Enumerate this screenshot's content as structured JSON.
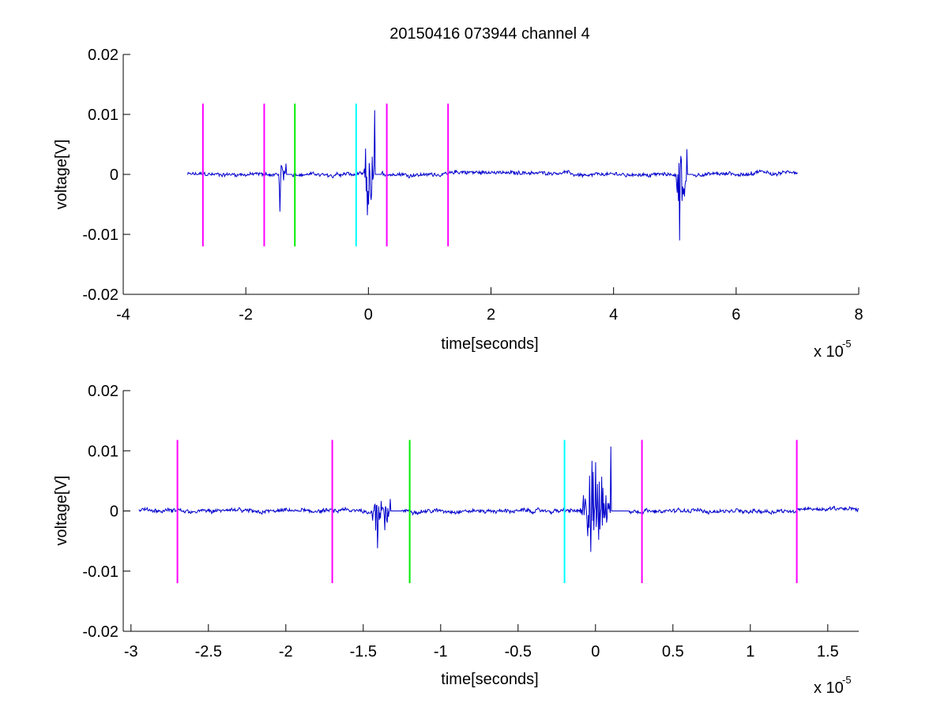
{
  "figure": {
    "title": "20150416 073944 channel 4"
  },
  "colors": {
    "signal": "#0000cc",
    "marker_magenta": "#ff00ff",
    "marker_green": "#00ee00",
    "marker_cyan": "#00ffff",
    "axes": "#000000",
    "background": "#ffffff"
  },
  "chart_data": [
    {
      "type": "line",
      "xlabel": "time[seconds]",
      "ylabel": "voltage[V]",
      "x_exponent": "x 10",
      "x_exponent_power": "-5",
      "xlim": [
        -4,
        8
      ],
      "ylim": [
        -0.02,
        0.02
      ],
      "x_ticks": [
        -4,
        -2,
        0,
        2,
        4,
        6,
        8
      ],
      "x_tick_labels": [
        "-4",
        "-2",
        "0",
        "2",
        "4",
        "6",
        "8"
      ],
      "y_ticks": [
        -0.02,
        -0.01,
        0,
        0.01,
        0.02
      ],
      "y_tick_labels": [
        "-0.02",
        "-0.01",
        "0",
        "0.01",
        "0.02"
      ],
      "grid": false,
      "signal_range": [
        -2.95,
        7.0
      ],
      "bursts": [
        {
          "t": [
            -1.5,
            -1.25
          ],
          "min": -0.0062,
          "max": 0.0018
        },
        {
          "t": [
            -0.08,
            0.22
          ],
          "min": -0.0068,
          "max": 0.0107
        },
        {
          "t": [
            5.02,
            5.3
          ],
          "min": -0.011,
          "max": 0.0042
        }
      ],
      "markers": [
        {
          "x": -2.7,
          "ymin": -0.012,
          "ymax": 0.0118,
          "color": "magenta"
        },
        {
          "x": -1.7,
          "ymin": -0.012,
          "ymax": 0.0118,
          "color": "magenta"
        },
        {
          "x": -1.2,
          "ymin": -0.012,
          "ymax": 0.0118,
          "color": "green"
        },
        {
          "x": -0.2,
          "ymin": -0.012,
          "ymax": 0.0118,
          "color": "cyan"
        },
        {
          "x": 0.3,
          "ymin": -0.012,
          "ymax": 0.0118,
          "color": "magenta"
        },
        {
          "x": 1.3,
          "ymin": -0.012,
          "ymax": 0.0118,
          "color": "magenta"
        }
      ]
    },
    {
      "type": "line",
      "xlabel": "time[seconds]",
      "ylabel": "voltage[V]",
      "x_exponent": "x 10",
      "x_exponent_power": "-5",
      "xlim": [
        -3.05,
        1.7
      ],
      "ylim": [
        -0.02,
        0.02
      ],
      "x_ticks": [
        -3,
        -2.5,
        -2,
        -1.5,
        -1,
        -0.5,
        0,
        0.5,
        1,
        1.5
      ],
      "x_tick_labels": [
        "-3",
        "-2.5",
        "-2",
        "-1.5",
        "-1",
        "-0.5",
        "0",
        "0.5",
        "1",
        "1.5"
      ],
      "y_ticks": [
        -0.02,
        -0.01,
        0,
        0.01,
        0.02
      ],
      "y_tick_labels": [
        "-0.02",
        "-0.01",
        "0",
        "0.01",
        "0.02"
      ],
      "grid": false,
      "signal_range": [
        -2.95,
        1.7
      ],
      "bursts": [
        {
          "t": [
            -1.45,
            -1.25
          ],
          "min": -0.0062,
          "max": 0.002
        },
        {
          "t": [
            -0.1,
            0.22
          ],
          "min": -0.0068,
          "max": 0.0107
        }
      ],
      "markers": [
        {
          "x": -2.7,
          "ymin": -0.012,
          "ymax": 0.0118,
          "color": "magenta"
        },
        {
          "x": -1.7,
          "ymin": -0.012,
          "ymax": 0.0118,
          "color": "magenta"
        },
        {
          "x": -1.2,
          "ymin": -0.012,
          "ymax": 0.0118,
          "color": "green"
        },
        {
          "x": -0.2,
          "ymin": -0.012,
          "ymax": 0.0118,
          "color": "cyan"
        },
        {
          "x": 0.3,
          "ymin": -0.012,
          "ymax": 0.0118,
          "color": "magenta"
        },
        {
          "x": 1.3,
          "ymin": -0.012,
          "ymax": 0.0118,
          "color": "magenta"
        }
      ]
    }
  ]
}
